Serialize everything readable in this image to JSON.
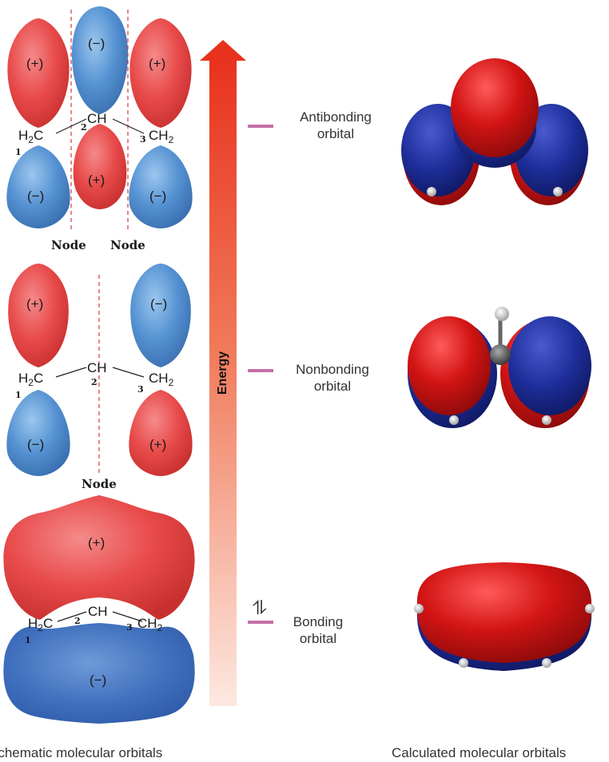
{
  "energy_axis": {
    "label": "Energy"
  },
  "levels": {
    "antibonding": {
      "line1": "Antibonding",
      "line2": "orbital"
    },
    "nonbonding": {
      "line1": "Nonbonding",
      "line2": "orbital"
    },
    "bonding": {
      "line1": "Bonding",
      "line2": "orbital",
      "electrons": "⥮"
    }
  },
  "schematic": {
    "antibonding": {
      "signs": [
        "(+)",
        "(−)",
        "(+)",
        "(−)",
        "(+)",
        "(−)"
      ],
      "left_group": "H",
      "left_sub": "2",
      "left_tail": "C",
      "center_group": "CH",
      "right_group": "CH",
      "right_sub": "2",
      "carbon_numbers": [
        "1",
        "2",
        "3"
      ],
      "node_labels": [
        "Node",
        "Node"
      ]
    },
    "nonbonding": {
      "signs": [
        "(+)",
        "(−)",
        "(−)",
        "(+)"
      ],
      "left_group": "H",
      "left_sub": "2",
      "left_tail": "C",
      "center_group": "CH",
      "right_group": "CH",
      "right_sub": "2",
      "carbon_numbers": [
        "1",
        "2",
        "3"
      ],
      "node_label": "Node"
    },
    "bonding": {
      "signs": [
        "(+)",
        "(−)"
      ],
      "left_group": "H",
      "left_sub": "2",
      "left_tail": "C",
      "center_group": "CH",
      "right_group": "CH",
      "right_sub": "2",
      "carbon_numbers": [
        "1",
        "2",
        "3"
      ]
    }
  },
  "captions": {
    "left": "Schematic molecular orbitals",
    "right": "Calculated molecular orbitals"
  },
  "colors": {
    "positive_lobe": "#e84a4a",
    "negative_lobe": "#4a86c8",
    "level_line": "#c56fa8",
    "energy_arrow_top": "#e8321e",
    "calc_red": "#d21414",
    "calc_blue": "#1e2e9a"
  }
}
